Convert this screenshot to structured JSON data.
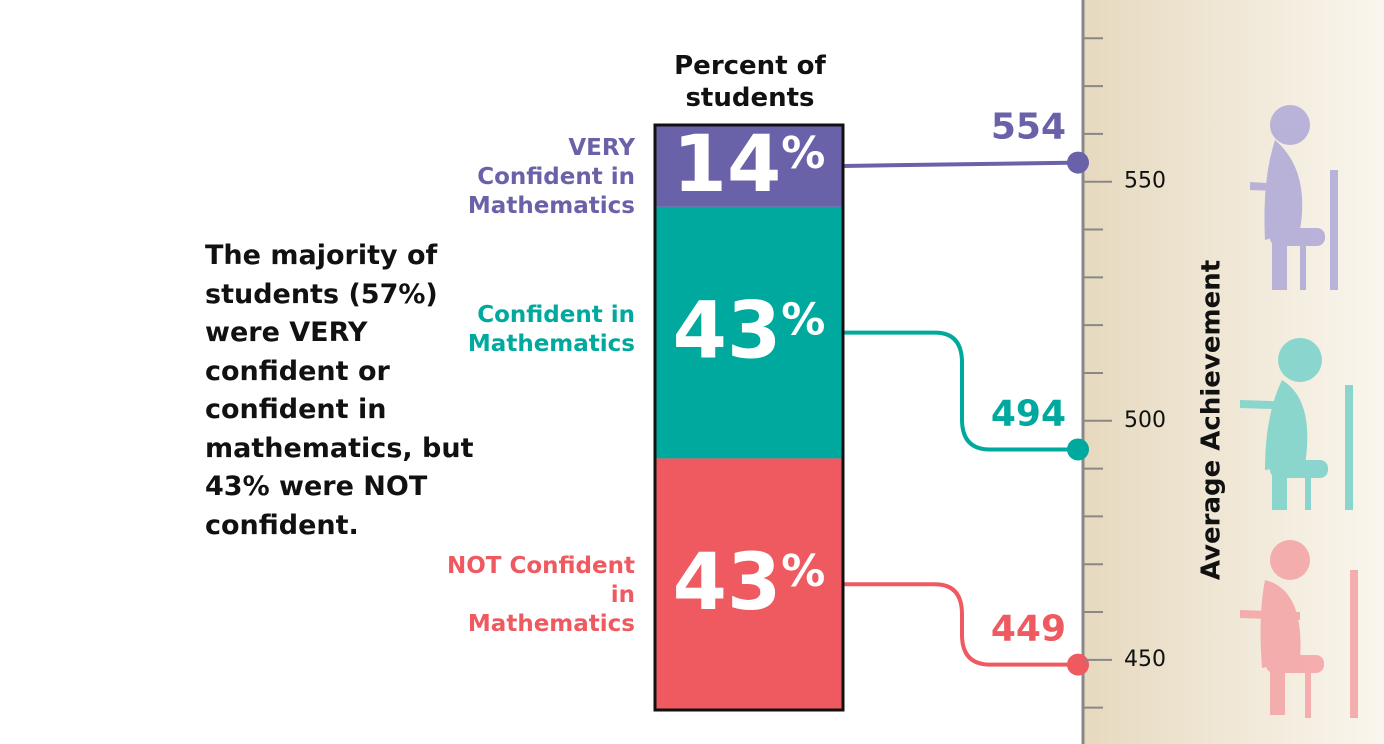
{
  "chart_data": {
    "type": "stacked",
    "note": "The majority of students (57%) were VERY confident or confident in mathematics, but 43% were NOT confident.",
    "title": "Percent of students",
    "categories": [
      "VERY Confident in Mathematics",
      "Confident in Mathematics",
      "NOT Confident in Mathematics"
    ],
    "colors": [
      "#6a62a9",
      "#00a99d",
      "#ef5a61"
    ],
    "values": [
      14,
      43,
      43
    ],
    "value_labels": [
      "14%",
      "43%",
      "43%"
    ],
    "ylim": [
      0,
      100
    ],
    "achievement": [
      554,
      494,
      449
    ],
    "y2label": "Average Achievement",
    "y2lim": [
      432.4,
      588
    ],
    "y2ticks": [
      450,
      500,
      550
    ],
    "y2minor": [
      440,
      460,
      470,
      480,
      490,
      510,
      520,
      530,
      540,
      560,
      570,
      580
    ]
  }
}
